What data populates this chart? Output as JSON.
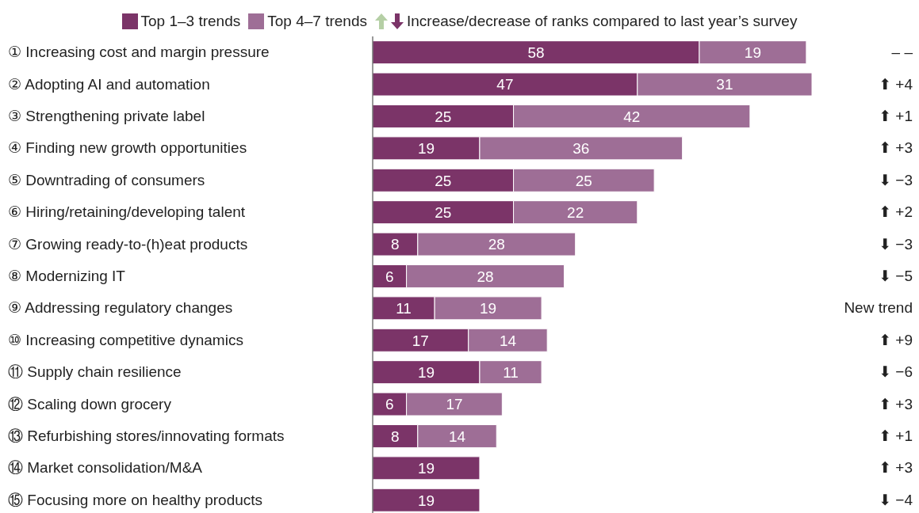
{
  "chart_data": {
    "type": "bar",
    "orientation": "horizontal",
    "stacked": true,
    "data_labels": true,
    "grid": false,
    "tick_labels": "y",
    "legend": "top",
    "categories": [
      "① Increasing cost and margin pressure",
      "② Adopting AI and automation",
      "③ Strengthening private label",
      "④ Finding new growth opportunities",
      "⑤ Downtrading of consumers",
      "⑥ Hiring/retaining/developing talent",
      "⑦ Growing ready-to-(h)eat products",
      "⑧ Modernizing IT",
      "⑨ Addressing regulatory changes",
      "⑩ Increasing competitive dynamics",
      "⑪ Supply chain resilience",
      "⑫ Scaling down grocery",
      "⑬ Refurbishing stores/innovating formats",
      "⑭ Market consolidation/M&A",
      "⑮ Focusing more on healthy products"
    ],
    "series": [
      {
        "name": "Top 1–3 trends",
        "color": "#7b3468",
        "values": [
          58,
          47,
          25,
          19,
          25,
          25,
          8,
          6,
          11,
          17,
          19,
          6,
          8,
          19,
          19
        ]
      },
      {
        "name": "Top 4–7 trends",
        "color": "#9e6e96",
        "values": [
          19,
          31,
          42,
          36,
          25,
          22,
          28,
          28,
          19,
          14,
          11,
          17,
          14,
          null,
          null
        ]
      }
    ],
    "annotations": [
      "Increase/decrease of ranks compared to last year’s survey",
      "–   –",
      "⬆ +4",
      "⬆ +1",
      "⬆ +3",
      "⬇ −3",
      "⬆ +2",
      "⬇ −3",
      "⬇ −5",
      "New trend",
      "⬆ +9",
      "⬇ −6",
      "⬆ +3",
      "⬆ +1",
      "⬆ +3",
      "⬇ −4"
    ]
  }
}
